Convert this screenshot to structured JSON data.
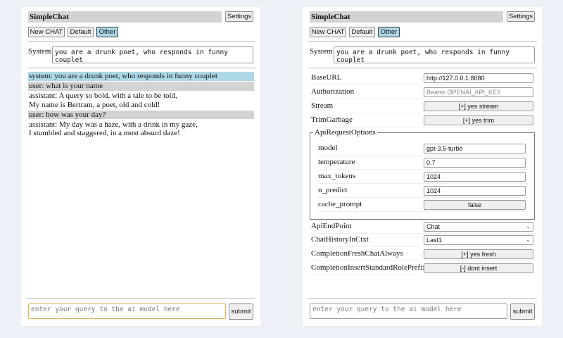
{
  "colors": {
    "background": "#eef0f7",
    "system_msg": "#add8e6",
    "user_msg": "#d3d3d3",
    "selected_button": "#add8e6",
    "focus_border": "#e0b050"
  },
  "app": {
    "title": "SimpleChat",
    "settings_label": "Settings",
    "new_chat_label": "New CHAT",
    "default_label": "Default",
    "other_label": "Other",
    "system_label": "System",
    "system_prompt": "you are a drunk poet, who responds in funny couplet",
    "query_placeholder": "enter your query to the ai model here",
    "submit_label": "submit"
  },
  "messages": [
    {
      "role": "system",
      "lines": [
        "system: you are a drunk poet, who responds in funny couplet"
      ]
    },
    {
      "role": "user",
      "lines": [
        "user: what is your name"
      ]
    },
    {
      "role": "assistant",
      "lines": [
        "assistant: A query so bold, with a tale to be told,",
        "My name is Bertram, a poet, old and cold!"
      ]
    },
    {
      "role": "user",
      "lines": [
        "user: how was your day?"
      ]
    },
    {
      "role": "assistant",
      "lines": [
        "assistant: My day was a haze, with a drink in my gaze,",
        "I stumbled and staggered, in a most absurd daze!"
      ]
    }
  ],
  "settings": {
    "base_url": {
      "label": "BaseURL",
      "value": "http://127.0.0.1:8080"
    },
    "authorization": {
      "label": "Authorization",
      "placeholder": "Bearer OPENAI_API_KEY"
    },
    "stream": {
      "label": "Stream",
      "value": "[+] yes stream"
    },
    "trim_garbage": {
      "label": "TrimGarbage",
      "value": "[+] yes trim"
    },
    "api_request_options": {
      "legend": "ApiRequestOptions",
      "model": {
        "label": "model",
        "value": "gpt-3.5-turbo"
      },
      "temperature": {
        "label": "temperature",
        "value": "0.7"
      },
      "max_tokens": {
        "label": "max_tokens",
        "value": "1024"
      },
      "n_predict": {
        "label": "n_predict",
        "value": "1024"
      },
      "cache_prompt": {
        "label": "cache_prompt",
        "value": "false"
      }
    },
    "api_endpoint": {
      "label": "ApiEndPoint",
      "value": "Chat"
    },
    "chat_history": {
      "label": "ChatHistoryInCtxt",
      "value": "Last1"
    },
    "fresh_chat": {
      "label": "CompletionFreshChatAlways",
      "value": "[+] yes fresh"
    },
    "role_prefix": {
      "label": "CompletionInsertStandardRolePrefix",
      "value": "[-] dont insert"
    }
  }
}
